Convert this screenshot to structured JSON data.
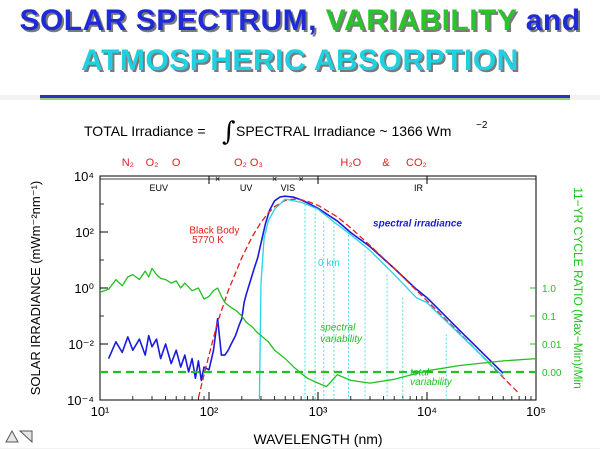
{
  "slide": {
    "title_line1_a": "SOLAR SPECTRUM,",
    "title_line1_b": "VARIABILITY",
    "title_line1_c": "and",
    "title_line2": "ATMOSPHERIC ABSORPTION"
  },
  "chart_data": {
    "type": "line",
    "equation": {
      "left": "TOTAL Irradiance =",
      "integral": "∫",
      "right": "SPECTRAL Irradiance ~ 1366 Wm",
      "right_sup": "−2"
    },
    "xlabel": "WAVELENGTH (nm)",
    "ylabel_left": "SOLAR IRRADIANCE (mWm⁻²nm⁻¹)",
    "ylabel_right": "11−YR CYCLE RATIO (Max−Min)/Min",
    "xscale": "log",
    "yscale": "log",
    "xlim": [
      10,
      100000
    ],
    "ylim": [
      0.0001,
      10000
    ],
    "x_ticks": [
      {
        "value": 10,
        "label": "10¹"
      },
      {
        "value": 100,
        "label": "10²"
      },
      {
        "value": 1000,
        "label": "10³"
      },
      {
        "value": 10000,
        "label": "10⁴"
      },
      {
        "value": 100000,
        "label": "10⁵"
      }
    ],
    "y_ticks": [
      {
        "value": 0.0001,
        "label": "10⁻⁴"
      },
      {
        "value": 0.01,
        "label": "10⁻²"
      },
      {
        "value": 1,
        "label": "10⁰"
      },
      {
        "value": 100,
        "label": "10²"
      },
      {
        "value": 10000,
        "label": "10⁴"
      }
    ],
    "right_ticks": [
      {
        "value": 1.0,
        "label": "1.0"
      },
      {
        "value": 0.1,
        "label": "0.1"
      },
      {
        "value": 0.01,
        "label": "0.01"
      },
      {
        "value": 0.001,
        "label": "0.00"
      }
    ],
    "right_scale": {
      "ratio_at": [
        1.0,
        0.001
      ],
      "irradiance_at": [
        1.0,
        0.001
      ]
    },
    "regions": [
      {
        "label": "EUV",
        "from": 10,
        "to": 120
      },
      {
        "label": "UV",
        "from": 120,
        "to": 400
      },
      {
        "label": "VIS",
        "from": 400,
        "to": 700
      },
      {
        "label": "IR",
        "from": 700,
        "to": 100000
      }
    ],
    "absorbers": [
      {
        "label": "N₂",
        "x": 18
      },
      {
        "label": "O₂",
        "x": 30
      },
      {
        "label": "O",
        "x": 50
      },
      {
        "label": "O₂ O₃",
        "x": 230
      },
      {
        "label": "H₂O",
        "x": 2000
      },
      {
        "label": "&",
        "x": 4200
      },
      {
        "label": "CO₂",
        "x": 8000
      }
    ],
    "annotations": [
      {
        "text": "spectral irradiance",
        "x": 3200,
        "y": 160,
        "color": "#1a1ae0"
      },
      {
        "text": "Black Body",
        "x": 66,
        "y": 90,
        "color": "#e02020"
      },
      {
        "text": "5770 K",
        "x": 70,
        "y": 40,
        "color": "#e02020"
      },
      {
        "text": "0 km",
        "x": 1000,
        "y": 6,
        "color": "#23d3e6"
      },
      {
        "text": "spectral",
        "x": 1050,
        "y": 0.03,
        "color": "#22c022"
      },
      {
        "text": "variability",
        "x": 1050,
        "y": 0.012,
        "color": "#22c022"
      },
      {
        "text": "total",
        "x": 7000,
        "y": 0.00075,
        "color": "#22c022"
      },
      {
        "text": "variability",
        "x": 7000,
        "y": 0.00035,
        "color": "#22c022"
      }
    ],
    "series": [
      {
        "name": "spectral irradiance",
        "color": "#1a1ae0",
        "x": [
          12,
          14,
          16,
          18,
          20,
          23,
          26,
          28,
          30,
          33,
          36,
          40,
          45,
          50,
          55,
          60,
          65,
          70,
          75,
          80,
          85,
          90,
          100,
          110,
          120,
          130,
          140,
          150,
          160,
          175,
          190,
          200,
          210,
          220,
          240,
          260,
          280,
          300,
          330,
          360,
          400,
          450,
          500,
          600,
          700,
          800,
          1000,
          1500,
          2000,
          3000,
          5000,
          8000,
          10000,
          20000,
          50000
        ],
        "y": [
          0.003,
          0.012,
          0.005,
          0.018,
          0.006,
          0.015,
          0.004,
          0.02,
          0.008,
          0.015,
          0.003,
          0.01,
          0.002,
          0.006,
          0.0015,
          0.004,
          0.001,
          0.003,
          0.0006,
          0.0025,
          0.0005,
          0.0015,
          0.0012,
          0.006,
          0.08,
          0.004,
          0.004,
          0.006,
          0.01,
          0.02,
          0.05,
          0.08,
          0.3,
          0.6,
          1.8,
          5,
          12,
          40,
          200,
          600,
          1300,
          1800,
          1900,
          1750,
          1400,
          1100,
          700,
          250,
          95,
          30,
          5,
          0.9,
          0.45,
          0.03,
          0.0009
        ]
      },
      {
        "name": "Black Body 5770 K",
        "color": "#e02020",
        "x": [
          80,
          90,
          100,
          120,
          150,
          200,
          250,
          300,
          350,
          400,
          500,
          600,
          700,
          800,
          1000,
          1500,
          2000,
          3000,
          5000,
          10000,
          20000,
          50000,
          70000
        ],
        "y": [
          0.00012,
          0.0008,
          0.004,
          0.06,
          0.8,
          12,
          70,
          220,
          480,
          800,
          1350,
          1500,
          1420,
          1250,
          900,
          350,
          140,
          33,
          5,
          0.35,
          0.024,
          0.00063,
          0.00017
        ]
      },
      {
        "name": "0 km",
        "color": "#23d3e6",
        "x": [
          290,
          300,
          320,
          350,
          400,
          500,
          700,
          800,
          1000,
          1400,
          2000,
          3000,
          5000,
          8000,
          10000,
          20000,
          50000
        ],
        "y": [
          0.0001,
          1.5,
          60,
          250,
          650,
          1500,
          1150,
          950,
          650,
          230,
          80,
          22,
          3,
          0.45,
          0.3,
          0.022,
          0.0007
        ]
      },
      {
        "name": "spectral variability",
        "color": "#22c022",
        "x": [
          10,
          12,
          14,
          16,
          18,
          20,
          23,
          26,
          28,
          30,
          33,
          36,
          40,
          45,
          50,
          55,
          60,
          70,
          80,
          90,
          100,
          110,
          120,
          130,
          140,
          160,
          180,
          200,
          220,
          250,
          280,
          300,
          350,
          400,
          500,
          600,
          700,
          800,
          1000,
          1200,
          1500,
          2000,
          3000,
          5000,
          10000,
          20000,
          50000,
          100000
        ],
        "y": [
          0.7,
          0.9,
          2,
          1.2,
          2.5,
          3,
          2,
          4,
          2.5,
          5,
          3,
          2.2,
          2,
          1.5,
          1.8,
          1,
          1.5,
          0.8,
          1,
          0.4,
          0.5,
          0.8,
          1,
          0.5,
          0.3,
          0.2,
          0.15,
          0.1,
          0.06,
          0.04,
          0.025,
          0.02,
          0.012,
          0.006,
          0.003,
          0.0015,
          0.0009,
          0.0006,
          0.0004,
          0.0003,
          0.0008,
          0.0005,
          0.0004,
          0.00055,
          0.0011,
          0.0017,
          0.0025,
          0.003
        ]
      },
      {
        "name": "total variability",
        "color": "#22c022",
        "dashed": true,
        "x": [
          10,
          100000
        ],
        "y": [
          0.001,
          0.001
        ]
      }
    ]
  }
}
